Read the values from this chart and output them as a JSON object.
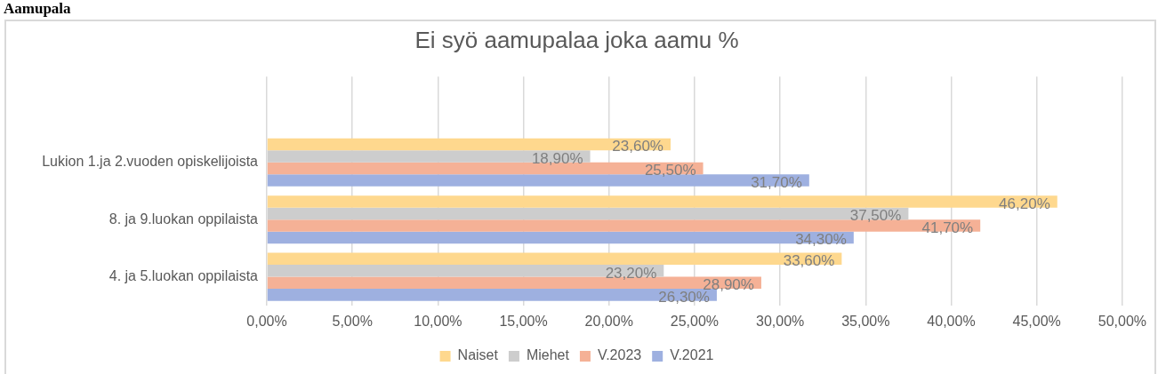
{
  "chart_data": {
    "type": "bar",
    "orientation": "horizontal",
    "title": "Ei syö aamupalaa joka aamu %",
    "annotations": [
      "Aamupala"
    ],
    "categories": [
      null,
      "Lukion 1.ja 2.vuoden opiskelijoista",
      "8. ja 9.luokan oppilaista",
      "4. ja 5.luokan oppilaista"
    ],
    "series": [
      {
        "name": "Naiset",
        "color": "#fed88e",
        "values": [
          null,
          23.6,
          46.2,
          33.6
        ],
        "value_labels": [
          null,
          "23,60%",
          "46,20%",
          "33,60%"
        ]
      },
      {
        "name": "Miehet",
        "color": "#cdcdcd",
        "values": [
          null,
          18.9,
          37.5,
          23.2
        ],
        "value_labels": [
          null,
          "18,90%",
          "37,50%",
          "23,20%"
        ]
      },
      {
        "name": "V.2023",
        "color": "#f5b196",
        "values": [
          null,
          25.5,
          41.7,
          28.9
        ],
        "value_labels": [
          null,
          "25,50%",
          "41,70%",
          "28,90%"
        ]
      },
      {
        "name": "V.2021",
        "color": "#9eb0e0",
        "values": [
          null,
          31.7,
          34.3,
          26.3
        ],
        "value_labels": [
          null,
          "31,70%",
          "34,30%",
          "26,30%"
        ]
      }
    ],
    "xlim": [
      0,
      50
    ],
    "xticks": [
      {
        "value": 0,
        "label": "0,00%"
      },
      {
        "value": 5,
        "label": "5,00%"
      },
      {
        "value": 10,
        "label": "10,00%"
      },
      {
        "value": 15,
        "label": "15,00%"
      },
      {
        "value": 20,
        "label": "20,00%"
      },
      {
        "value": 25,
        "label": "25,00%"
      },
      {
        "value": 30,
        "label": "30,00%"
      },
      {
        "value": 35,
        "label": "35,00%"
      },
      {
        "value": 40,
        "label": "40,00%"
      },
      {
        "value": 45,
        "label": "45,00%"
      },
      {
        "value": 50,
        "label": "50,00%"
      }
    ],
    "grid": "x",
    "legend": "bottom"
  }
}
